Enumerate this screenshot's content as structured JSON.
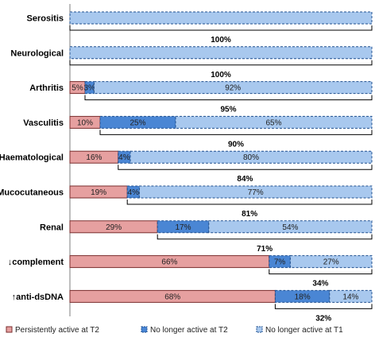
{
  "chart_data": {
    "type": "bar",
    "orientation": "horizontal",
    "stacked": true,
    "categories": [
      "Serositis",
      "Neurological",
      "Arthritis",
      "Vasculitis",
      "Haematological",
      "Mucocutaneous",
      "Renal",
      "↓complement",
      "↑anti-dsDNA"
    ],
    "series": [
      {
        "name": "Persistently active at T2",
        "values": [
          0,
          0,
          5,
          10,
          16,
          19,
          29,
          66,
          68
        ],
        "color": "#e6a0a0",
        "labels": [
          "",
          "",
          "5%",
          "10%",
          "16%",
          "19%",
          "29%",
          "66%",
          "68%"
        ]
      },
      {
        "name": "No longer active at T2",
        "values": [
          0,
          0,
          3,
          25,
          4,
          4,
          17,
          7,
          18
        ],
        "color": "#4a86d4",
        "labels": [
          "",
          "",
          "3%",
          "25%",
          "4%",
          "4%",
          "17%",
          "7%",
          "18%"
        ]
      },
      {
        "name": "No longer active at T1",
        "values": [
          100,
          100,
          92,
          65,
          80,
          77,
          54,
          27,
          14
        ],
        "color": "#a8c8ee",
        "labels": [
          "",
          "",
          "92%",
          "65%",
          "80%",
          "77%",
          "54%",
          "27%",
          "14%"
        ]
      }
    ],
    "bracket_labels": [
      "100%",
      "100%",
      "95%",
      "90%",
      "84%",
      "81%",
      "71%",
      "34%",
      "32%"
    ],
    "xlim": [
      0,
      100
    ],
    "legend": "bottom",
    "grid": false
  }
}
